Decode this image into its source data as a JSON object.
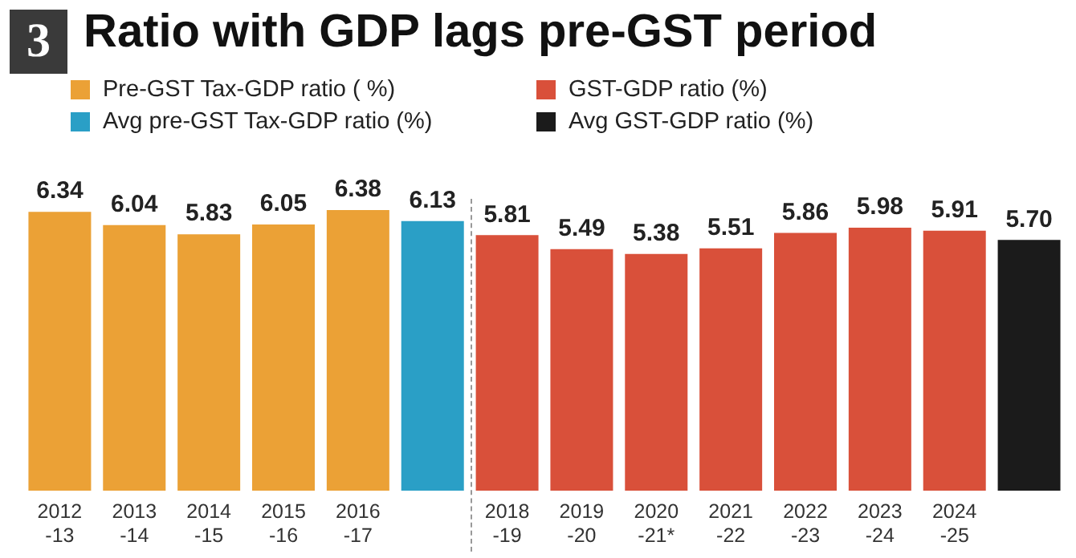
{
  "chart_data": {
    "type": "bar",
    "title": "Ratio with GDP lags pre-GST period",
    "annotations": [
      "3"
    ],
    "categories": [
      "2012-13",
      "2013-14",
      "2014-15",
      "2015-16",
      "2016-17",
      null,
      "2018-19",
      "2019-20",
      "2020-21*",
      "2021-22",
      "2022-23",
      "2023-24",
      "2024-25",
      null
    ],
    "series": [
      {
        "name": "Pre-GST Tax-GDP ratio ( %)",
        "color": "#eba136",
        "values": [
          6.34,
          6.04,
          5.83,
          6.05,
          6.38,
          null,
          null,
          null,
          null,
          null,
          null,
          null,
          null,
          null
        ]
      },
      {
        "name": "GST-GDP ratio (%)",
        "color": "#d9503a",
        "values": [
          null,
          null,
          null,
          null,
          null,
          null,
          5.81,
          5.49,
          5.38,
          5.51,
          5.86,
          5.98,
          5.91,
          null
        ]
      },
      {
        "name": "Avg pre-GST  Tax-GDP ratio (%)",
        "color": "#2a9fc6",
        "values": [
          null,
          null,
          null,
          null,
          null,
          6.13,
          null,
          null,
          null,
          null,
          null,
          null,
          null,
          null
        ]
      },
      {
        "name": "Avg GST-GDP ratio (%)",
        "color": "#1b1b1b",
        "values": [
          null,
          null,
          null,
          null,
          null,
          null,
          null,
          null,
          null,
          null,
          null,
          null,
          null,
          5.7
        ],
        "value_labels": [
          null,
          null,
          null,
          null,
          null,
          null,
          null,
          null,
          null,
          null,
          null,
          null,
          null,
          "5.70"
        ]
      }
    ],
    "relative": false,
    "data_labels": true,
    "legend": "top",
    "grid": false
  }
}
